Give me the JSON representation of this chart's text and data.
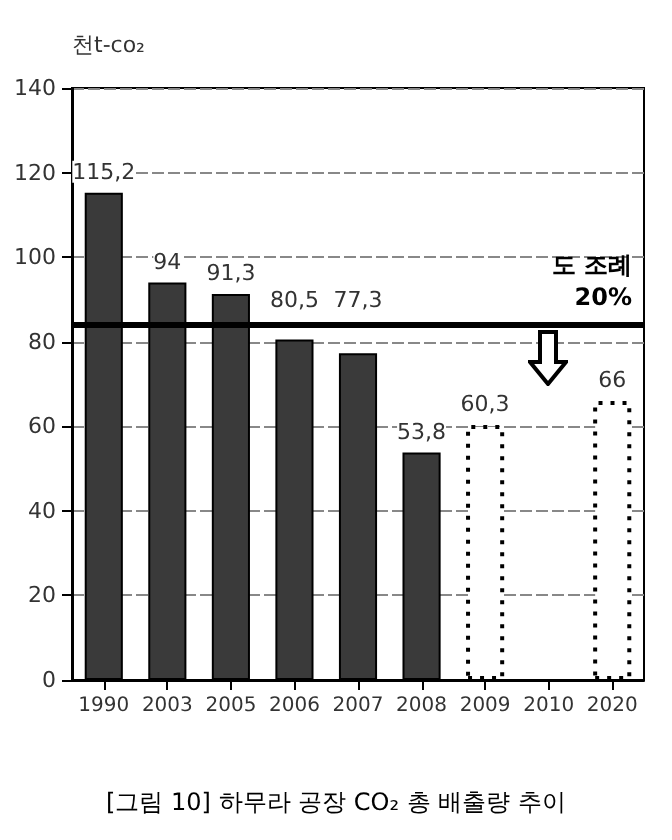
{
  "chart_data": {
    "type": "bar",
    "title": "[그림 10] 하무라 공장 CO₂ 총 배출량 추이",
    "ylabel": "천t-co₂",
    "categories": [
      "1990",
      "2003",
      "2005",
      "2006",
      "2007",
      "2008",
      "2009",
      "2010",
      "2020"
    ],
    "values": [
      115.2,
      94,
      91.3,
      80.5,
      77.3,
      53.8,
      60.3,
      null,
      66
    ],
    "colors": [
      "#3a3a3a",
      "#3a3a3a",
      "#3a3a3a",
      "#3a3a3a",
      "#3a3a3a",
      "#3a3a3a",
      "#ffffff",
      null,
      "#ffffff"
    ],
    "value_labels": [
      "115,2",
      "94",
      "91,3",
      "80,5",
      "77,3",
      "53,8",
      "60,3",
      null,
      "66"
    ],
    "ylim": [
      0,
      140
    ],
    "yticks": [
      0,
      20,
      40,
      60,
      80,
      100,
      120,
      140
    ],
    "grid": true,
    "ref_lines": [
      {
        "axis": "y",
        "value": 84,
        "label": "도 조례\n20%",
        "color": "#000000"
      }
    ]
  }
}
